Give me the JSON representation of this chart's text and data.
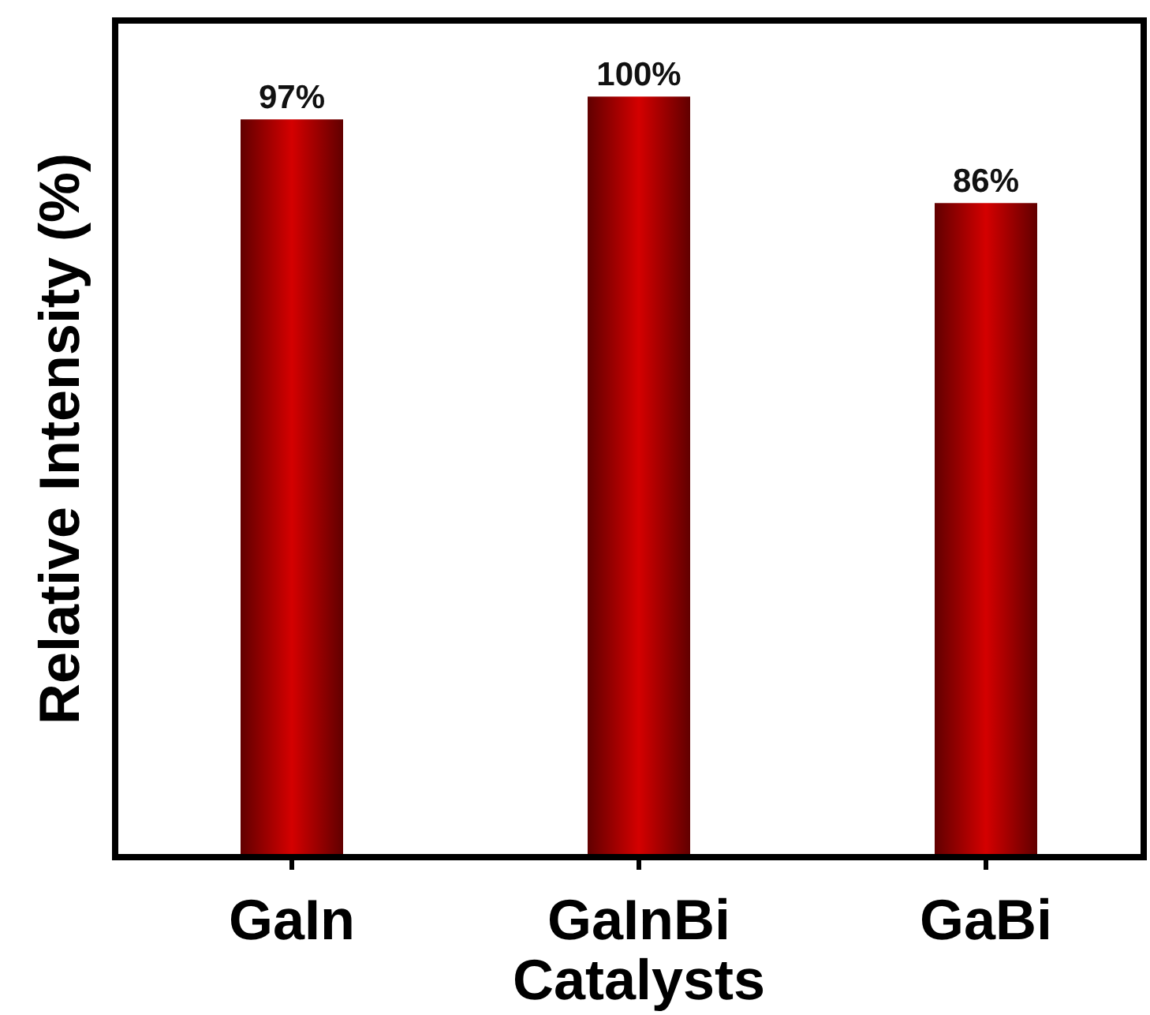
{
  "chart_data": {
    "type": "bar",
    "xlabel": "Catalysts",
    "ylabel": "Relative Intensity (%)",
    "categories": [
      "GaIn",
      "GaInBi",
      "GaBi"
    ],
    "values": [
      97,
      100,
      86
    ],
    "value_labels": [
      "97%",
      "100%",
      "86%"
    ],
    "color": "#d40000",
    "tick_labels": "x"
  }
}
